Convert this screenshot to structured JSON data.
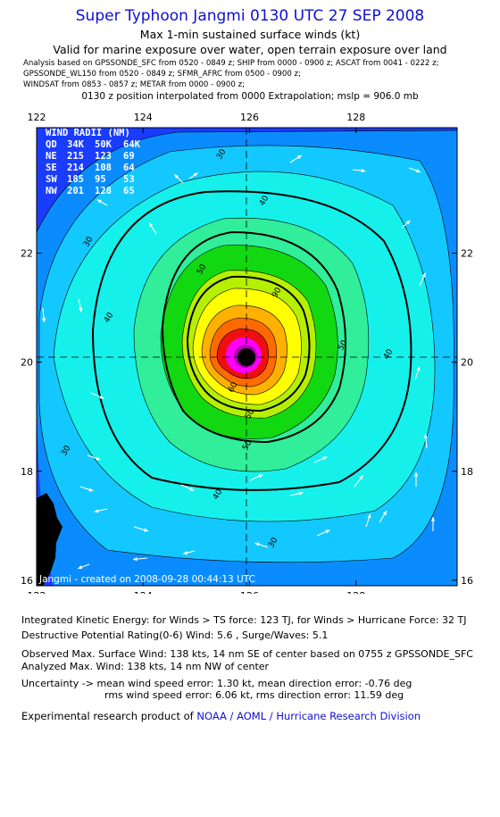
{
  "header": {
    "title": "Super Typhoon Jangmi 0130 UTC 27 SEP 2008",
    "subtitle1": "Max 1-min sustained surface winds (kt)",
    "subtitle2": "Valid for marine exposure over water, open terrain exposure over land",
    "analysis_line1": "Analysis based on  GPSSONDE_SFC from 0520 - 0849 z;  SHIP from 0000 - 0900 z;  ASCAT from 0041 - 0222 z;",
    "analysis_line2": "GPSSONDE_WL150 from 0520 - 0849 z;  SFMR_AFRC from 0500 - 0900 z;",
    "analysis_line3": "WINDSAT from 0853 - 0857 z;  METAR from 0000 - 0900 z;",
    "position_line": "0130 z position interpolated from 0000 Extrapolation; mslp = 906.0 mb"
  },
  "map": {
    "lon_ticks": [
      "122",
      "124",
      "126",
      "128"
    ],
    "lat_ticks": [
      "16",
      "18",
      "20",
      "22"
    ],
    "lon_range": [
      122,
      129.9
    ],
    "lat_range": [
      15.9,
      24.3
    ],
    "center": {
      "lon": 126.0,
      "lat": 20.0
    },
    "contour_labels": [
      "30",
      "30",
      "30",
      "30",
      "40",
      "40",
      "40",
      "40",
      "50",
      "50",
      "50",
      "50",
      "60",
      "90"
    ],
    "created_stamp": "Jangmi - created on 2008-09-28 00:44:13 UTC",
    "wind_radii": {
      "title": "WIND RADII (NM)",
      "header": [
        "QD",
        "34K",
        "50K",
        "64K"
      ],
      "rows": [
        [
          "NE",
          "215",
          "123",
          "69"
        ],
        [
          "SE",
          "214",
          "108",
          "64"
        ],
        [
          "SW",
          "185",
          "95",
          "53"
        ],
        [
          "NW",
          "201",
          "128",
          "65"
        ]
      ]
    },
    "colors": {
      "ocean_low": "#1a3cff",
      "c20": "#0a8cff",
      "c30": "#13c8ff",
      "c40": "#16f0ea",
      "c50": "#30ee9a",
      "c60": "#12d812",
      "c70": "#b6f000",
      "c80": "#ffff00",
      "c90": "#ffb000",
      "c100": "#ff6a00",
      "c110": "#ee1010",
      "c120": "#ff00ff",
      "c130": "#b000b0",
      "land": "#000000"
    }
  },
  "footer": {
    "ike_line": "Integrated Kinetic Energy:  for Winds > TS force: 123 TJ,  for Winds > Hurricane Force: 32 TJ",
    "dpr_line": "Destructive Potential Rating(0-6)   Wind: 5.6 , Surge/Waves: 5.1",
    "observed_line": "Observed Max. Surface Wind: 138 kts, 14 nm SE of center based on 0755 z GPSSONDE_SFC",
    "analyzed_line": "Analyzed Max. Wind: 138 kts, 14 nm NW of center",
    "uncertainty_line1": "Uncertainty -> mean wind speed error: 1.30 kt,   mean direction error:  -0.76 deg",
    "uncertainty_line2": "rms wind speed error: 6.06 kt,   rms direction error: 11.59 deg",
    "product_prefix": "Experimental research product of ",
    "product_org": "NOAA / AOML / Hurricane Research Division"
  }
}
